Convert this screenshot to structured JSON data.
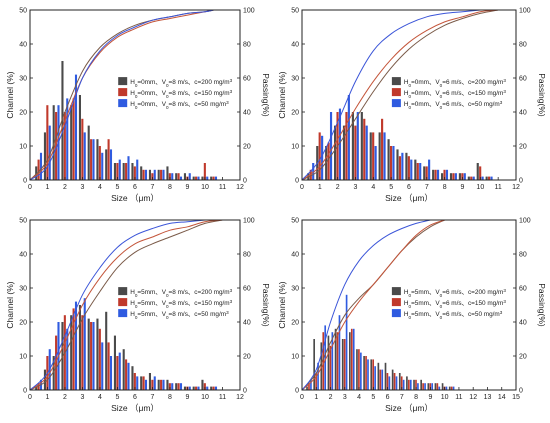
{
  "colors": {
    "c200": "#4a4a4a",
    "c150": "#c0392b",
    "c50": "#2f5be0",
    "curve200": "#7a5a48",
    "curve150": "#c4553a",
    "curve50": "#3b55d8"
  },
  "chart_data": [
    {
      "type": "bar",
      "title": "",
      "xlabel": "Size （μm）",
      "ylabel": "Channel (%)",
      "y2label": "Passing(%)",
      "xlim": [
        0,
        12
      ],
      "ylim": [
        0,
        50
      ],
      "y2lim": [
        0,
        100
      ],
      "xticks": [
        "0",
        "1",
        "2",
        "3",
        "4",
        "5",
        "6",
        "7",
        "8",
        "9",
        "10",
        "11",
        "12"
      ],
      "yticks": [
        "0",
        "10",
        "20",
        "30",
        "40",
        "50"
      ],
      "y2ticks": [
        "0",
        "20",
        "40",
        "60",
        "80",
        "100"
      ],
      "legend_position": "top-right",
      "x": [
        0.5,
        1,
        1.5,
        2,
        2.5,
        3,
        3.5,
        4,
        4.5,
        5,
        5.5,
        6,
        6.5,
        7,
        7.5,
        8,
        8.5,
        9,
        9.5,
        10,
        10.5
      ],
      "series": [
        {
          "name": "H₀=0mm、V₀=8 m/s、c=200 mg/m³",
          "values": [
            4,
            14,
            22,
            35,
            22,
            25,
            16,
            12,
            9,
            5,
            5,
            5,
            4,
            3,
            3,
            4,
            2,
            2,
            1,
            1,
            1
          ]
        },
        {
          "name": "H₀=0mm、V₀=8 m/s、c=150 mg/m³",
          "values": [
            6,
            22,
            20,
            20,
            24,
            18,
            12,
            10,
            12,
            5,
            5,
            4,
            3,
            2,
            3,
            2,
            2,
            1,
            1,
            5,
            1
          ]
        },
        {
          "name": "H₀=0mm、V₀=8 m/s、c=50 mg/m³",
          "values": [
            8,
            16,
            22,
            24,
            31,
            14,
            12,
            8,
            9,
            6,
            7,
            6,
            3,
            3,
            3,
            2,
            1,
            2,
            1,
            1,
            1
          ]
        }
      ],
      "passing_curves": [
        {
          "series": "c200",
          "x": [
            0,
            1,
            2,
            3,
            4,
            5,
            6,
            7,
            8,
            9,
            10,
            10.5
          ],
          "y": [
            0,
            12,
            40,
            64,
            78,
            86,
            91,
            94,
            96,
            98,
            99,
            100
          ]
        },
        {
          "series": "c150",
          "x": [
            0,
            1,
            2,
            3,
            4,
            5,
            6,
            7,
            8,
            9,
            10,
            10.5
          ],
          "y": [
            0,
            10,
            35,
            60,
            75,
            84,
            89,
            93,
            95,
            97,
            99,
            100
          ]
        },
        {
          "series": "c50",
          "x": [
            0,
            1,
            2,
            3,
            4,
            5,
            6,
            7,
            8,
            9,
            10,
            10.5
          ],
          "y": [
            0,
            8,
            32,
            60,
            76,
            85,
            90,
            94,
            96,
            98,
            99,
            100
          ]
        }
      ]
    },
    {
      "type": "bar",
      "title": "",
      "xlabel": "Size （μm）",
      "ylabel": "Channel (%)",
      "y2label": "Passing(%)",
      "xlim": [
        0,
        12
      ],
      "ylim": [
        0,
        50
      ],
      "y2lim": [
        0,
        100
      ],
      "xticks": [
        "0",
        "1",
        "2",
        "3",
        "4",
        "5",
        "6",
        "7",
        "8",
        "9",
        "10",
        "11",
        "12"
      ],
      "yticks": [
        "0",
        "10",
        "20",
        "30",
        "40",
        "50"
      ],
      "y2ticks": [
        "0",
        "20",
        "40",
        "60",
        "80",
        "100"
      ],
      "legend_position": "top-right",
      "x": [
        0.5,
        1,
        1.5,
        2,
        2.5,
        3,
        3.5,
        4,
        4.5,
        5,
        5.5,
        6,
        6.5,
        7,
        7.5,
        8,
        8.5,
        9,
        9.5,
        10,
        10.5
      ],
      "series": [
        {
          "name": "H₀=0mm、V₀=6 m/s、c=200 mg/m³",
          "values": [
            2,
            10,
            10,
            16,
            16,
            20,
            20,
            14,
            14,
            12,
            9,
            8,
            6,
            4,
            3,
            2,
            2,
            2,
            1,
            5,
            1
          ]
        },
        {
          "name": "H₀=0mm、V₀=6 m/s、c=150 mg/m³",
          "values": [
            3,
            14,
            11,
            20,
            20,
            16,
            18,
            14,
            18,
            10,
            7,
            7,
            5,
            4,
            3,
            3,
            2,
            2,
            1,
            4,
            1
          ]
        },
        {
          "name": "H₀=0mm、V₀=6 m/s、c=50 mg/m³",
          "values": [
            5,
            13,
            20,
            21,
            25,
            20,
            16,
            10,
            14,
            10,
            8,
            6,
            5,
            6,
            3,
            3,
            2,
            2,
            1,
            1,
            1
          ]
        }
      ],
      "passing_curves": [
        {
          "series": "c200",
          "x": [
            0,
            1,
            2,
            3,
            4,
            5,
            6,
            7,
            8,
            9,
            10,
            11
          ],
          "y": [
            0,
            6,
            20,
            36,
            52,
            66,
            77,
            85,
            91,
            95,
            98,
            100
          ]
        },
        {
          "series": "c150",
          "x": [
            0,
            1,
            2,
            3,
            4,
            5,
            6,
            7,
            8,
            9,
            10,
            11
          ],
          "y": [
            0,
            8,
            24,
            42,
            58,
            71,
            81,
            88,
            93,
            96,
            99,
            100
          ]
        },
        {
          "series": "c50",
          "x": [
            0,
            1,
            2,
            3,
            4,
            5,
            6,
            7,
            8,
            9,
            10
          ],
          "y": [
            0,
            12,
            34,
            58,
            76,
            86,
            92,
            96,
            98,
            99,
            100
          ]
        }
      ]
    },
    {
      "type": "bar",
      "title": "",
      "xlabel": "Size （μm）",
      "ylabel": "Channel (%)",
      "y2label": "Passing(%)",
      "xlim": [
        0,
        12
      ],
      "ylim": [
        0,
        50
      ],
      "y2lim": [
        0,
        100
      ],
      "xticks": [
        "0",
        "1",
        "2",
        "3",
        "4",
        "5",
        "6",
        "7",
        "8",
        "9",
        "10",
        "11",
        "12"
      ],
      "yticks": [
        "0",
        "10",
        "20",
        "30",
        "40",
        "50"
      ],
      "y2ticks": [
        "0",
        "20",
        "40",
        "60",
        "80",
        "100"
      ],
      "legend_position": "top-right",
      "x": [
        0.5,
        1,
        1.5,
        2,
        2.5,
        3,
        3.5,
        4,
        4.5,
        5,
        5.5,
        6,
        6.5,
        7,
        7.5,
        8,
        8.5,
        9,
        9.5,
        10,
        10.5
      ],
      "series": [
        {
          "name": "H₀=5mm、V₀=8 m/s、c=200 mg/m³",
          "values": [
            1,
            6,
            10,
            20,
            22,
            25,
            21,
            21,
            23,
            16,
            12,
            7,
            4,
            5,
            3,
            3,
            2,
            1,
            1,
            3,
            1
          ]
        },
        {
          "name": "H₀=5mm、V₀=8 m/s、c=150 mg/m³",
          "values": [
            2,
            10,
            16,
            22,
            24,
            22,
            20,
            18,
            14,
            10,
            9,
            5,
            4,
            3,
            3,
            2,
            2,
            1,
            1,
            2,
            1
          ]
        },
        {
          "name": "H₀=5mm、V₀=8 m/s、c=50 mg/m³",
          "values": [
            3,
            12,
            20,
            18,
            26,
            27,
            20,
            14,
            10,
            11,
            8,
            4,
            3,
            4,
            3,
            2,
            2,
            1,
            1,
            1,
            1
          ]
        }
      ],
      "passing_curves": [
        {
          "series": "c200",
          "x": [
            0,
            1,
            2,
            3,
            4,
            5,
            6,
            7,
            8,
            9,
            10,
            11
          ],
          "y": [
            0,
            6,
            22,
            42,
            58,
            72,
            81,
            86,
            90,
            94,
            98,
            100
          ]
        },
        {
          "series": "c150",
          "x": [
            0,
            1,
            2,
            3,
            4,
            5,
            6,
            7,
            8,
            9,
            10,
            11
          ],
          "y": [
            0,
            8,
            28,
            50,
            66,
            78,
            86,
            90,
            94,
            96,
            99,
            100
          ]
        },
        {
          "series": "c50",
          "x": [
            0,
            1,
            2,
            3,
            4,
            5,
            6,
            7,
            8,
            9,
            10
          ],
          "y": [
            0,
            10,
            32,
            56,
            72,
            84,
            91,
            95,
            98,
            99,
            100
          ]
        }
      ]
    },
    {
      "type": "bar",
      "title": "",
      "xlabel": "Size （μm）",
      "ylabel": "Channel (%)",
      "y2label": "Passing(%)",
      "xlim": [
        0,
        15
      ],
      "ylim": [
        0,
        50
      ],
      "y2lim": [
        0,
        100
      ],
      "xticks": [
        "0",
        "1",
        "2",
        "3",
        "4",
        "5",
        "6",
        "7",
        "8",
        "9",
        "10",
        "11",
        "12",
        "13",
        "14",
        "15"
      ],
      "yticks": [
        "0",
        "10",
        "20",
        "30",
        "40",
        "50"
      ],
      "y2ticks": [
        "0",
        "20",
        "40",
        "60",
        "80",
        "100"
      ],
      "legend_position": "top-right",
      "x": [
        0.5,
        1,
        1.5,
        2,
        2.5,
        3,
        3.5,
        4,
        4.5,
        5,
        5.5,
        6,
        6.5,
        7,
        7.5,
        8,
        8.5,
        9,
        9.5,
        10,
        10.5
      ],
      "series": [
        {
          "name": "H₀=5mm、V₀=6 m/s、c=200 mg/m³",
          "values": [
            1,
            15,
            14,
            16,
            18,
            15,
            17,
            12,
            10,
            9,
            8,
            8,
            6,
            5,
            4,
            3,
            3,
            2,
            2,
            2,
            1
          ]
        },
        {
          "name": "H₀=5mm、V₀=6 m/s、c=150 mg/m³",
          "values": [
            2,
            5,
            17,
            13,
            17,
            15,
            18,
            12,
            10,
            9,
            6,
            5,
            5,
            4,
            3,
            3,
            2,
            2,
            2,
            1,
            1
          ]
        },
        {
          "name": "H₀=5mm、V₀=6 m/s、c=50 mg/m³",
          "values": [
            3,
            8,
            19,
            17,
            22,
            28,
            18,
            11,
            9,
            7,
            6,
            4,
            4,
            3,
            3,
            2,
            2,
            2,
            1,
            1,
            1
          ]
        }
      ],
      "passing_curves": [
        {
          "series": "c200",
          "x": [
            0,
            1,
            2,
            3,
            4,
            5,
            6,
            7,
            8,
            9,
            10
          ],
          "y": [
            0,
            10,
            28,
            44,
            54,
            62,
            72,
            82,
            90,
            96,
            100
          ]
        },
        {
          "series": "c150",
          "x": [
            0,
            1,
            2,
            3,
            4,
            5,
            6,
            7,
            8,
            9,
            10
          ],
          "y": [
            0,
            8,
            24,
            40,
            52,
            62,
            72,
            82,
            91,
            97,
            100
          ]
        },
        {
          "series": "c50",
          "x": [
            0,
            1,
            2,
            3,
            4,
            5,
            6,
            7,
            8,
            9
          ],
          "y": [
            0,
            12,
            40,
            62,
            76,
            85,
            91,
            95,
            98,
            100
          ]
        }
      ]
    }
  ]
}
